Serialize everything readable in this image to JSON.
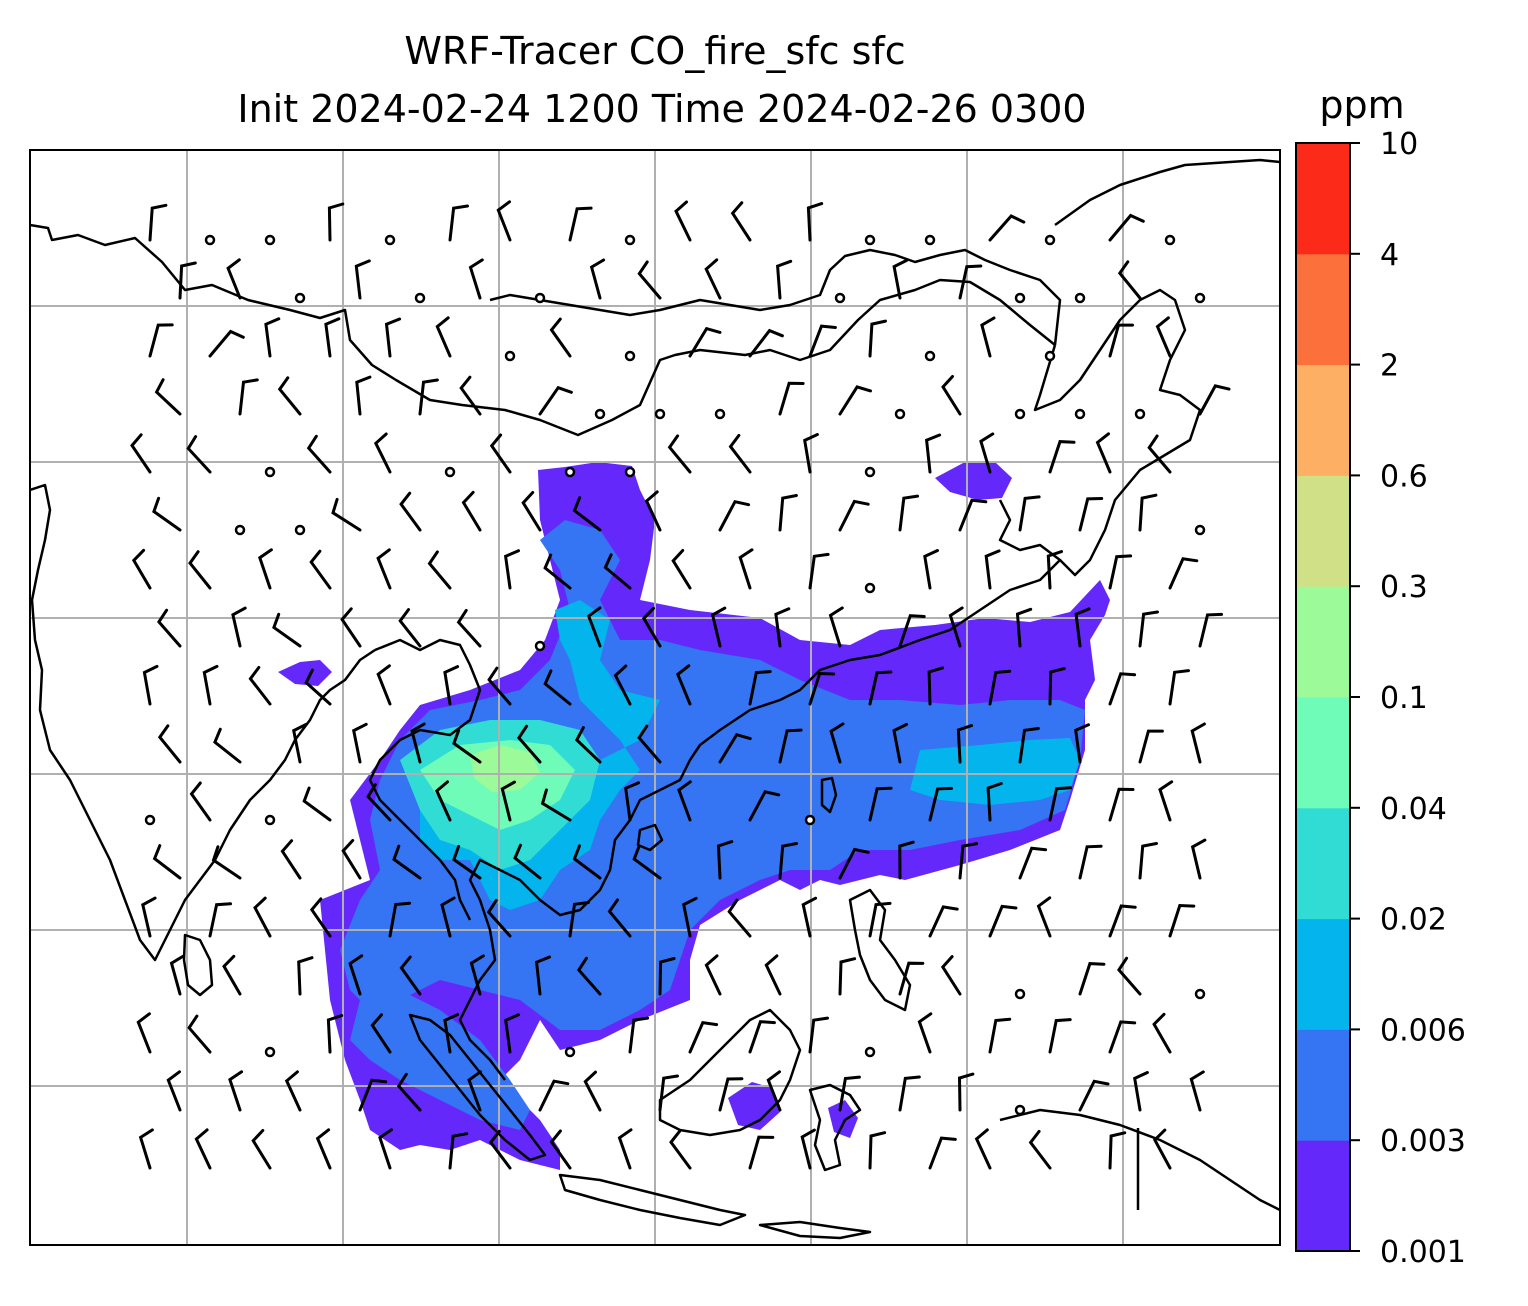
{
  "figure": {
    "title_line1": "WRF-Tracer CO_fire_sfc sfc",
    "title_line2": "Init 2024-02-24 1200 Time 2024-02-26 0300"
  },
  "colorbar": {
    "unit": "ppm",
    "levels": [
      "0.001",
      "0.003",
      "0.006",
      "0.02",
      "0.04",
      "0.1",
      "0.3",
      "0.6",
      "2",
      "4",
      "10"
    ],
    "colors": [
      "#6528fa",
      "#3574f2",
      "#04b4ec",
      "#30dcd4",
      "#6efcb8",
      "#9cfa98",
      "#cfe086",
      "#fdb064",
      "#fc703c",
      "#fc2a18"
    ]
  },
  "chart_data": {
    "type": "heatmap",
    "variable": "CO_fire_sfc",
    "level": "sfc",
    "unit": "ppm",
    "levels": [
      0.001,
      0.003,
      0.006,
      0.02,
      0.04,
      0.1,
      0.3,
      0.6,
      2,
      4,
      10
    ],
    "overlay": "wind barbs and calm-wind circles",
    "grid": true
  }
}
